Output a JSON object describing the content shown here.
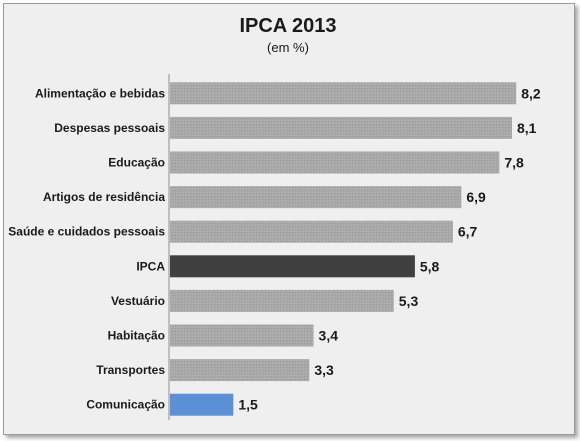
{
  "chart_data": {
    "type": "bar",
    "orientation": "horizontal",
    "title": "IPCA 2013",
    "subtitle": "(em %)",
    "categories": [
      "Alimentação e bebidas",
      "Despesas pessoais",
      "Educação",
      "Artigos de residência",
      "Saúde e cuidados pessoais",
      "IPCA",
      "Vestuário",
      "Habitação",
      "Transportes",
      "Comunicação"
    ],
    "values": [
      8.2,
      8.1,
      7.8,
      6.9,
      6.7,
      5.8,
      5.3,
      3.4,
      3.3,
      1.5
    ],
    "value_labels": [
      "8,2",
      "8,1",
      "7,8",
      "6,9",
      "6,7",
      "5,8",
      "5,3",
      "3,4",
      "3,3",
      "1,5"
    ],
    "xlim": [
      0,
      9
    ],
    "grid": false,
    "colors": {
      "default": "#a6a6a6",
      "IPCA": "#404040",
      "Comunicação": "#5b8fd6"
    }
  }
}
